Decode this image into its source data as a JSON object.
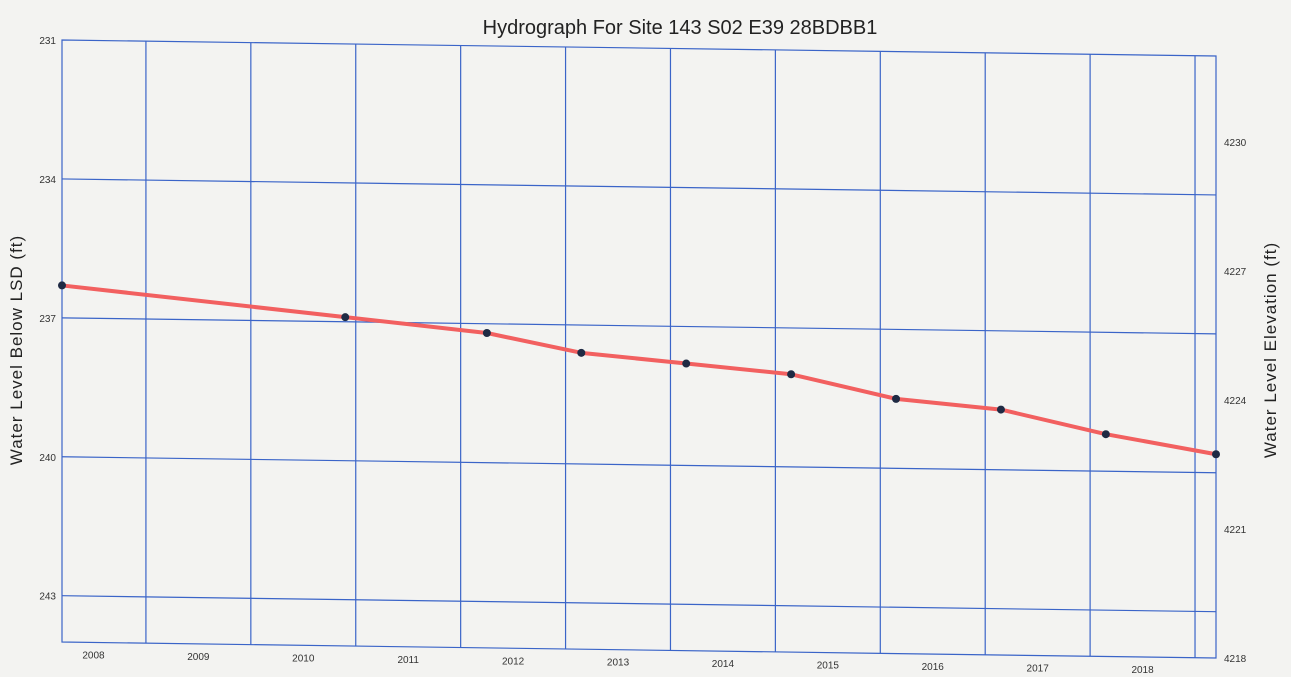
{
  "chart_data": {
    "type": "line",
    "title": "Hydrograph For Site 143  S02 E39 28BDBB1",
    "ylabel": "Water Level Below LSD (ft)",
    "y2label": "Water Level Elevation (ft)",
    "xlim": [
      2007.7,
      2018.7
    ],
    "ylim": [
      231,
      244
    ],
    "y2lim": [
      4218,
      4232
    ],
    "y_reversed": true,
    "grid": true,
    "x_ticks": [
      2008,
      2009,
      2010,
      2011,
      2012,
      2013,
      2014,
      2015,
      2016,
      2017,
      2018
    ],
    "y_ticks": [
      231,
      234,
      237,
      240,
      243
    ],
    "y2_ticks": [
      4218,
      4221,
      4224,
      4227,
      4230
    ],
    "series": [
      {
        "color": "#f26060",
        "x": [
          2007.7,
          2010.4,
          2011.75,
          2012.65,
          2013.65,
          2014.65,
          2015.65,
          2016.65,
          2017.65,
          2018.7
        ],
        "y": [
          236.3,
          236.9,
          237.2,
          237.6,
          237.8,
          238.0,
          238.5,
          238.7,
          239.2,
          239.6
        ]
      }
    ]
  }
}
